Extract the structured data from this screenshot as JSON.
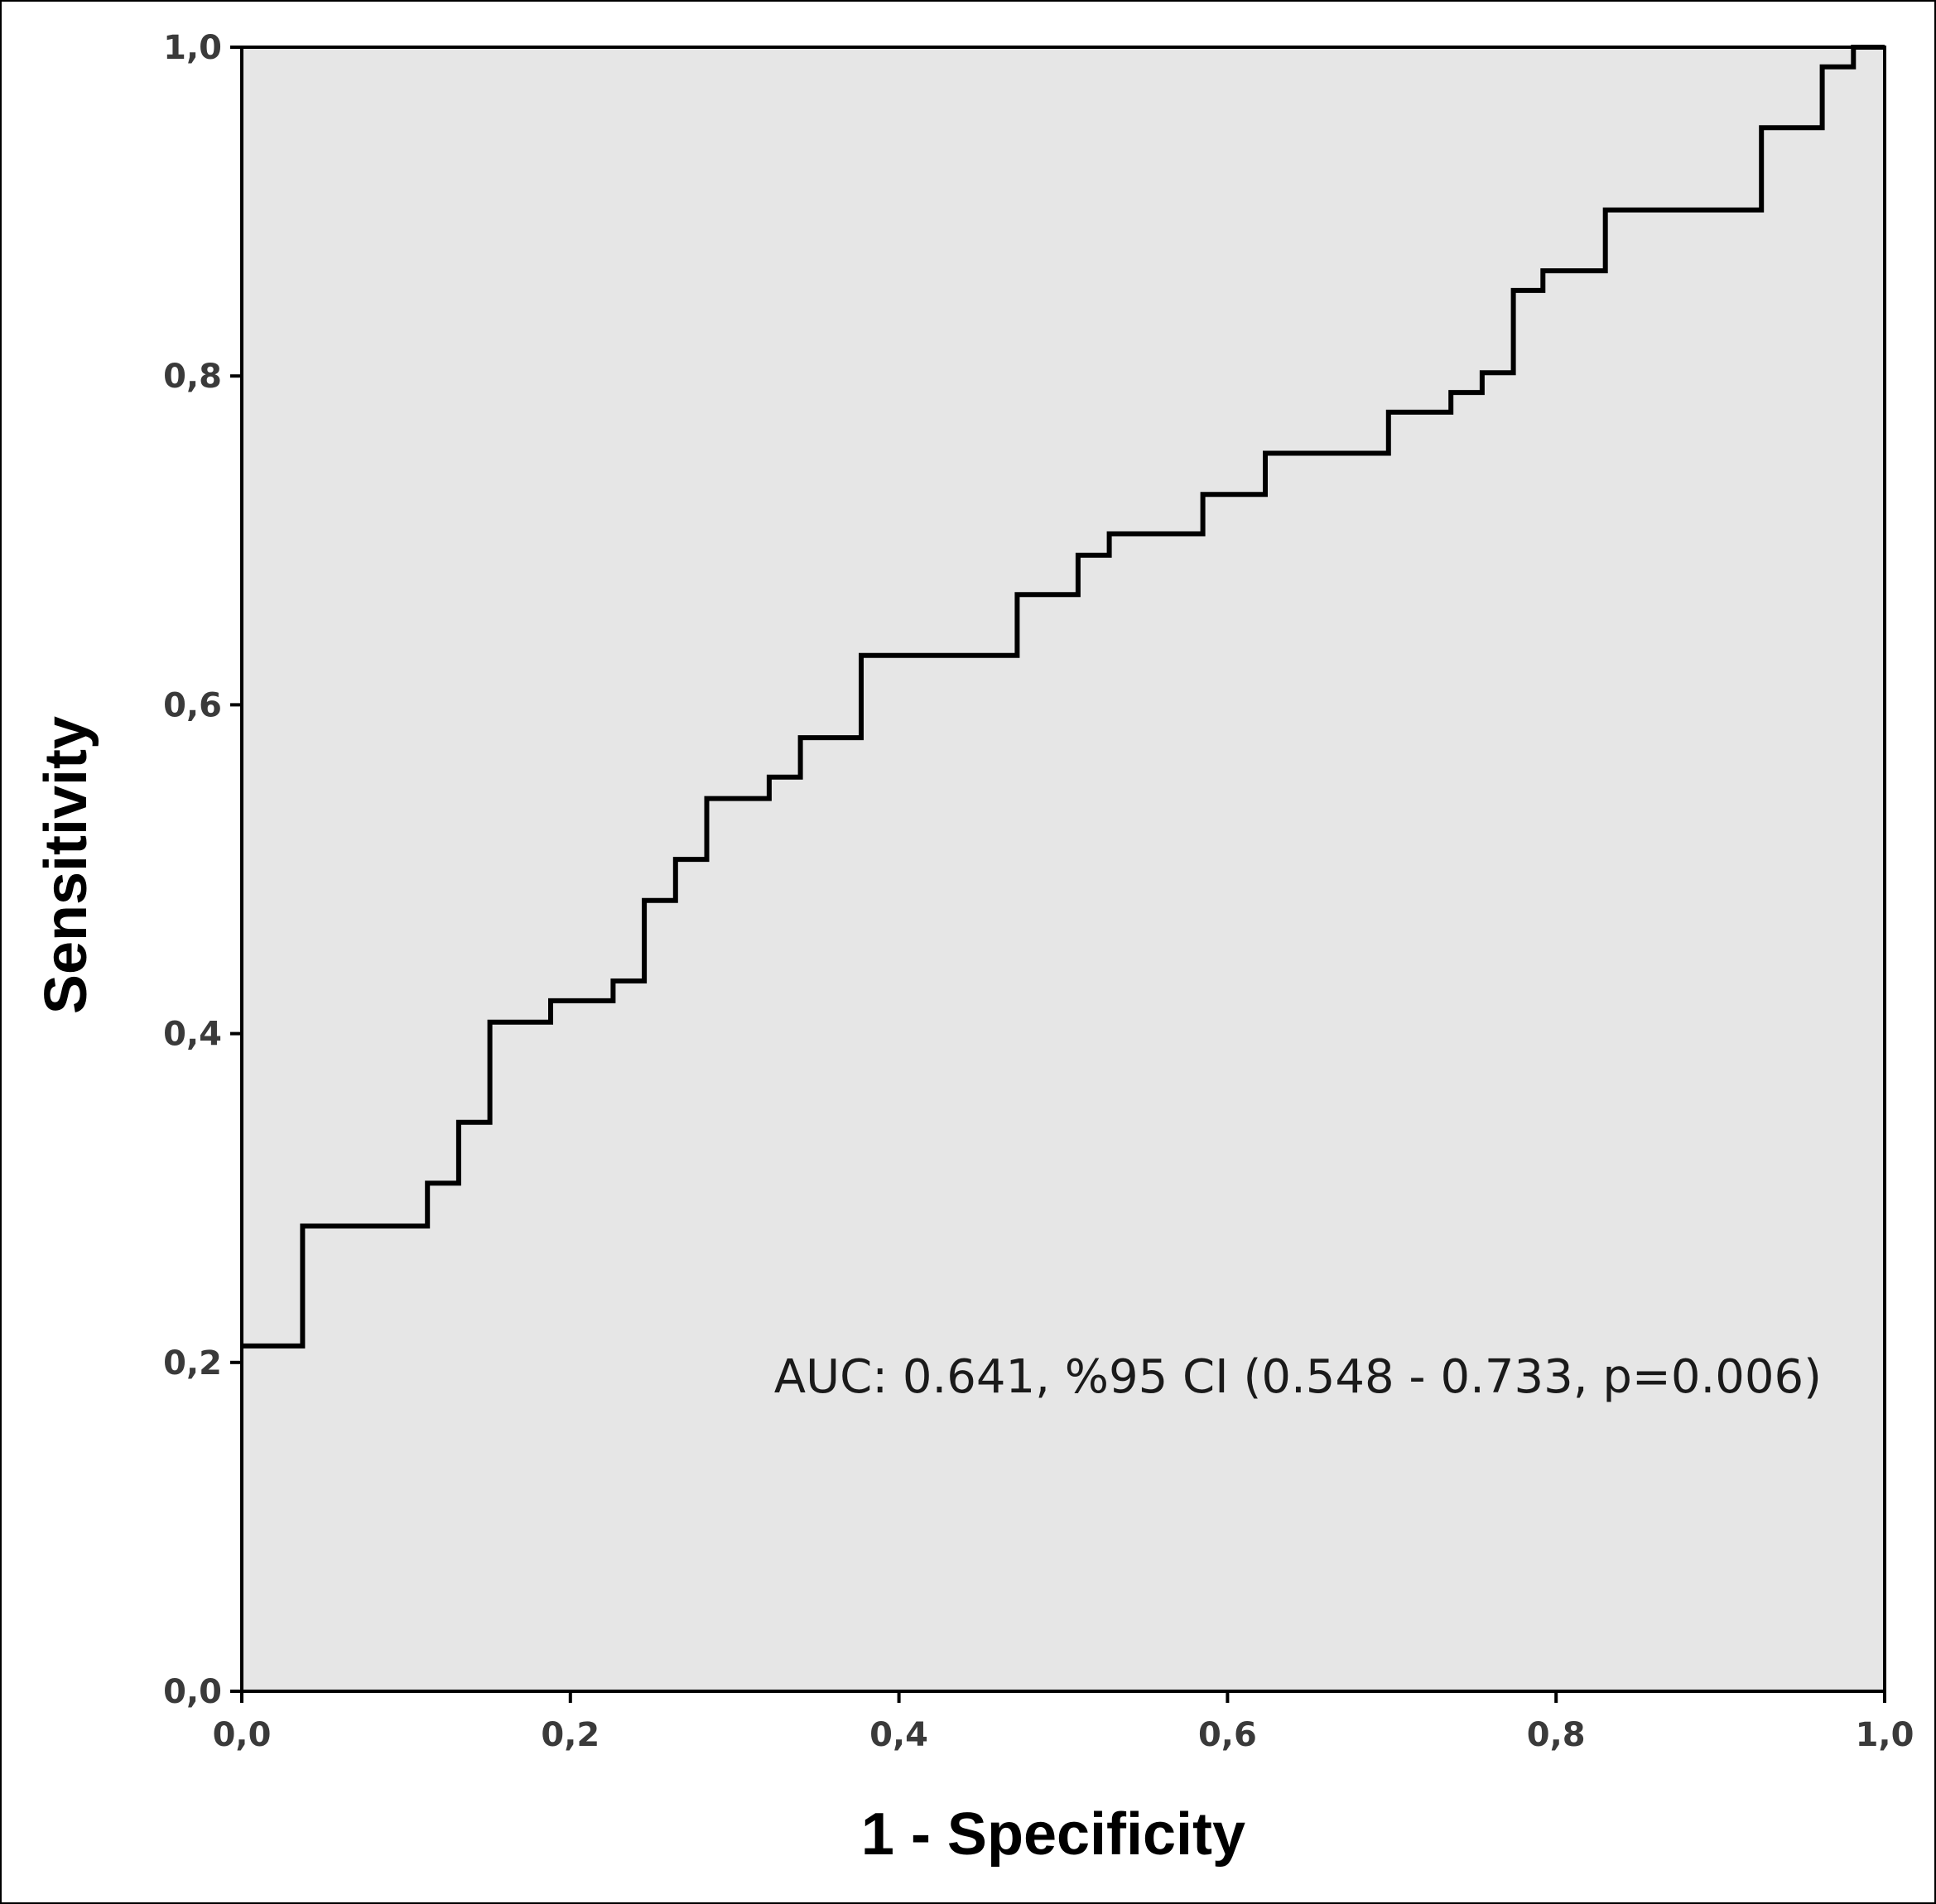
{
  "chart_data": {
    "type": "line",
    "title": "",
    "xlabel": "1 - Specificity",
    "ylabel": "Sensitivity",
    "xlim": [
      0,
      1
    ],
    "ylim": [
      0,
      1
    ],
    "xticks": [
      "0,0",
      "0,2",
      "0,4",
      "0,6",
      "0,8",
      "1,0"
    ],
    "yticks": [
      "0,0",
      "0,2",
      "0,4",
      "0,6",
      "0,8",
      "1,0"
    ],
    "annotation": "AUC: 0.641, %95 CI (0.548 - 0.733, p=0.006)",
    "grid": false,
    "background": "#e6e6e6",
    "series": [
      {
        "line_color": "#000000",
        "step": true,
        "x": [
          0.0,
          0.037,
          0.037,
          0.113,
          0.113,
          0.132,
          0.132,
          0.151,
          0.151,
          0.188,
          0.188,
          0.226,
          0.226,
          0.245,
          0.245,
          0.264,
          0.264,
          0.283,
          0.283,
          0.321,
          0.321,
          0.34,
          0.34,
          0.377,
          0.377,
          0.472,
          0.472,
          0.509,
          0.509,
          0.528,
          0.528,
          0.585,
          0.585,
          0.623,
          0.623,
          0.698,
          0.698,
          0.736,
          0.736,
          0.755,
          0.755,
          0.774,
          0.774,
          0.792,
          0.792,
          0.83,
          0.83,
          0.925,
          0.925,
          0.962,
          0.962,
          0.981,
          0.981,
          1.0
        ],
        "y": [
          0.21,
          0.21,
          0.283,
          0.283,
          0.309,
          0.309,
          0.346,
          0.346,
          0.407,
          0.407,
          0.42,
          0.42,
          0.432,
          0.432,
          0.481,
          0.481,
          0.506,
          0.506,
          0.543,
          0.543,
          0.556,
          0.556,
          0.58,
          0.58,
          0.63,
          0.63,
          0.667,
          0.667,
          0.691,
          0.691,
          0.704,
          0.704,
          0.728,
          0.728,
          0.753,
          0.753,
          0.778,
          0.778,
          0.79,
          0.79,
          0.802,
          0.802,
          0.852,
          0.852,
          0.864,
          0.864,
          0.901,
          0.901,
          0.951,
          0.951,
          0.988,
          0.988,
          1.0,
          1.0
        ]
      }
    ]
  }
}
